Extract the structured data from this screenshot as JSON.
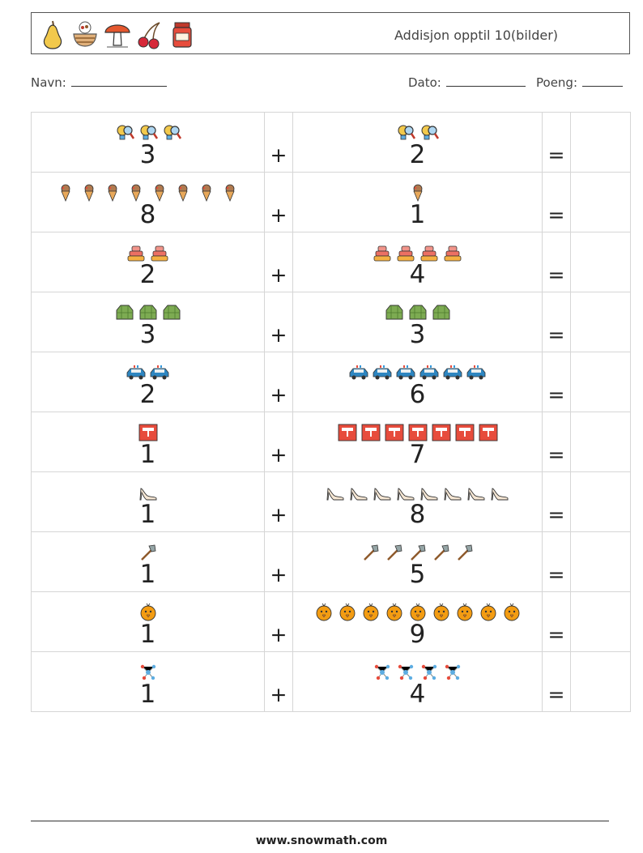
{
  "header": {
    "title": "Addisjon opptil 10(bilder)",
    "icons": [
      "pear-icon",
      "nut-basket-icon",
      "mushroom-icon",
      "cherries-icon",
      "jam-jar-icon"
    ]
  },
  "fields": {
    "name_label": "Navn:",
    "date_label": "Dato:",
    "score_label": "Poeng:"
  },
  "operators": {
    "plus": "+",
    "equals": "="
  },
  "problems": [
    {
      "a": 3,
      "b": 2,
      "icon": "magnifier-bulb-icon"
    },
    {
      "a": 8,
      "b": 1,
      "icon": "ice-cream-cone-icon"
    },
    {
      "a": 2,
      "b": 4,
      "icon": "cake-icon"
    },
    {
      "a": 3,
      "b": 3,
      "icon": "green-bag-icon"
    },
    {
      "a": 2,
      "b": 6,
      "icon": "police-car-icon"
    },
    {
      "a": 1,
      "b": 7,
      "icon": "red-sign-icon"
    },
    {
      "a": 1,
      "b": 8,
      "icon": "high-heel-shoe-icon"
    },
    {
      "a": 1,
      "b": 5,
      "icon": "axe-icon"
    },
    {
      "a": 1,
      "b": 9,
      "icon": "chick-icon"
    },
    {
      "a": 1,
      "b": 4,
      "icon": "molecule-icon"
    }
  ],
  "footer": {
    "website": "www.snowmath.com"
  }
}
